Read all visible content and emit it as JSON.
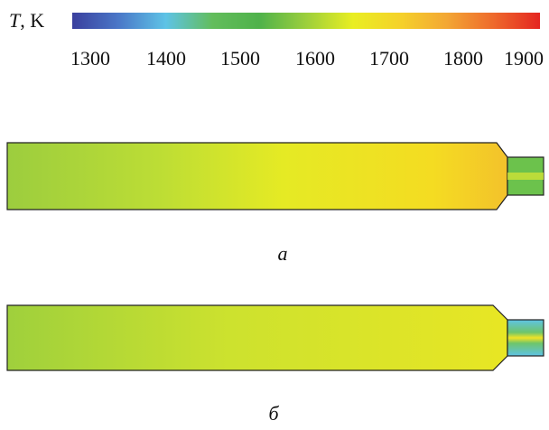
{
  "colorbar": {
    "variable": "T",
    "unit": ", K",
    "colors": [
      "#3a3f9e",
      "#4a78c8",
      "#5ec3e6",
      "#63bd5c",
      "#4fb24b",
      "#9ccf3c",
      "#e9ee22",
      "#f5d22a",
      "#f3a734",
      "#ee6a2c",
      "#e42520"
    ],
    "ticks": [
      "1300",
      "1400",
      "1500",
      "1600",
      "1700",
      "1800",
      "1900"
    ]
  },
  "panels": [
    {
      "label": "а"
    },
    {
      "label": "б"
    }
  ]
}
